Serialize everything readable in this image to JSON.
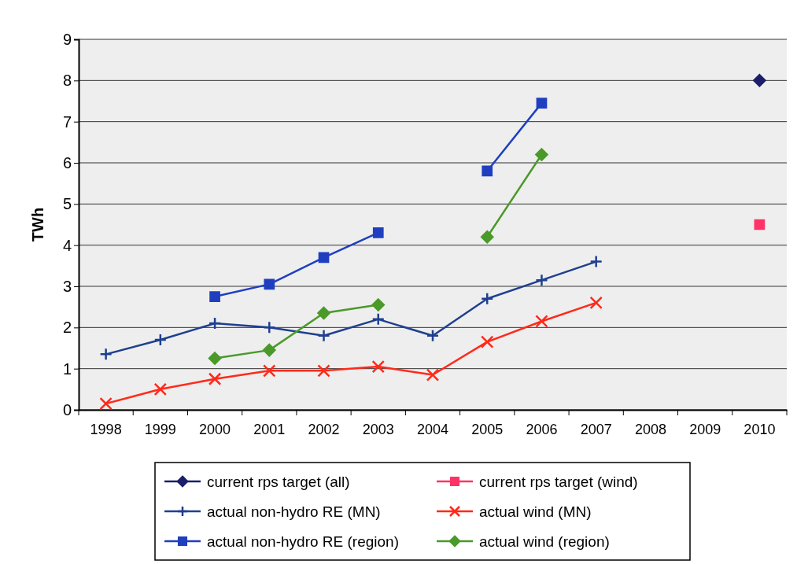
{
  "chart_data": {
    "type": "line",
    "ylabel": "TWh",
    "categories": [
      "1998",
      "1999",
      "2000",
      "2001",
      "2002",
      "2003",
      "2004",
      "2005",
      "2006",
      "2007",
      "2008",
      "2009",
      "2010"
    ],
    "ylim": [
      0,
      9
    ],
    "yticks": [
      0,
      1,
      2,
      3,
      4,
      5,
      6,
      7,
      8,
      9
    ],
    "grid": "y",
    "legend": "bottom",
    "line_style": "solid",
    "series": [
      {
        "name": "current rps target (all)",
        "color": "#1b1f6b",
        "marker": "diamond",
        "values": [
          null,
          null,
          null,
          null,
          null,
          null,
          null,
          null,
          null,
          null,
          null,
          null,
          8.0
        ]
      },
      {
        "name": "current rps target (wind)",
        "color": "#ff3366",
        "marker": "square",
        "values": [
          null,
          null,
          null,
          null,
          null,
          null,
          null,
          null,
          null,
          null,
          null,
          null,
          4.5
        ]
      },
      {
        "name": "actual non-hydro RE (MN)",
        "color": "#1f3f8f",
        "marker": "plus",
        "values": [
          1.35,
          1.7,
          2.1,
          2.0,
          1.8,
          2.2,
          1.8,
          2.7,
          3.15,
          3.6,
          null,
          null,
          null
        ]
      },
      {
        "name": "actual wind (MN)",
        "color": "#ff2a1a",
        "marker": "x",
        "values": [
          0.15,
          0.5,
          0.75,
          0.95,
          0.95,
          1.05,
          0.85,
          1.65,
          2.15,
          2.6,
          null,
          null,
          null
        ]
      },
      {
        "name": "actual non-hydro RE (region)",
        "color": "#1f3fbf",
        "marker": "square",
        "values": [
          null,
          null,
          2.75,
          3.05,
          3.7,
          4.3,
          null,
          5.8,
          7.45,
          null,
          null,
          null,
          null
        ]
      },
      {
        "name": "actual wind (region)",
        "color": "#4a9a2a",
        "marker": "diamond",
        "values": [
          null,
          null,
          1.25,
          1.45,
          2.35,
          2.55,
          null,
          4.2,
          6.2,
          null,
          null,
          null,
          null
        ]
      }
    ]
  }
}
